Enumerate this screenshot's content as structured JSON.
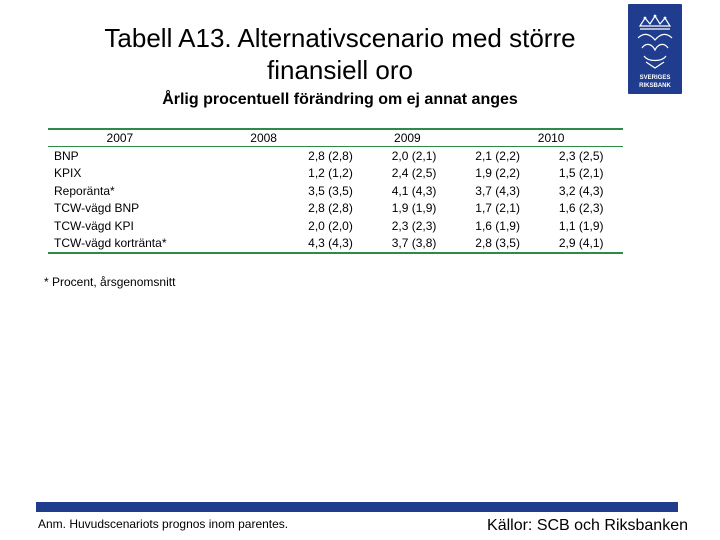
{
  "title_line1": "Tabell A13. Alternativscenario med större",
  "title_line2": "finansiell oro",
  "subtitle": "Årlig procentuell förändring om ej annat anges",
  "logo": {
    "icon": "riksbank-crown-logo",
    "text_line1": "SVERIGES",
    "text_line2": "RIKSBANK",
    "color": "#1f3c8f"
  },
  "table": {
    "columns": [
      "2007",
      "2008",
      "2009",
      "2010"
    ],
    "rows": [
      {
        "label": "BNP",
        "values": [
          "2,8 (2,8)",
          "2,0 (2,1)",
          "2,1 (2,2)",
          "2,3 (2,5)"
        ]
      },
      {
        "label": "KPIX",
        "values": [
          "1,2 (1,2)",
          "2,4 (2,5)",
          "1,9 (2,2)",
          "1,5 (2,1)"
        ]
      },
      {
        "label": "Reporänta*",
        "values": [
          "3,5 (3,5)",
          "4,1 (4,3)",
          "3,7 (4,3)",
          "3,2 (4,3)"
        ]
      },
      {
        "label": "TCW-vägd BNP",
        "values": [
          "2,8 (2,8)",
          "1,9 (1,9)",
          "1,7 (2,1)",
          "1,6 (2,3)"
        ]
      },
      {
        "label": "TCW-vägd KPI",
        "values": [
          "2,0 (2,0)",
          "2,3 (2,3)",
          "1,6 (1,9)",
          "1,1 (1,9)"
        ]
      },
      {
        "label": "TCW-vägd kortränta*",
        "values": [
          "4,3 (4,3)",
          "3,7 (3,8)",
          "2,8 (3,5)",
          "2,9 (4,1)"
        ]
      }
    ],
    "rule_color": "#2e8a48"
  },
  "footnote": "* Procent, årsgenomsnitt",
  "note": "Anm. Huvudscenariots prognos inom parentes.",
  "source": "Källor: SCB och Riksbanken"
}
